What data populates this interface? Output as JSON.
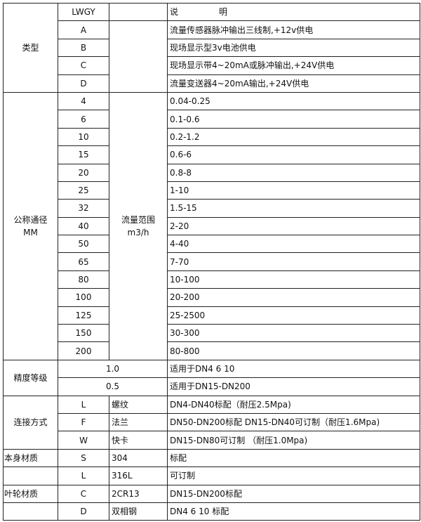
{
  "header": {
    "code": "LWGY",
    "desc_a": "说",
    "desc_b": "明"
  },
  "type": {
    "label": "类型",
    "rows": [
      {
        "code": "A",
        "desc": "流量传感器脉冲输出三线制,+12v供电"
      },
      {
        "code": "B",
        "desc": "现场显示型3v电池供电"
      },
      {
        "code": "C",
        "desc": "现场显示带4~20mA或脉冲输出,+24V供电"
      },
      {
        "code": "D",
        "desc": "流量变送器4~20mA输出,+24V供电"
      }
    ]
  },
  "diameter": {
    "label": "公称通径",
    "unit": "MM",
    "flow_label": "流量范围",
    "flow_unit": "m3/h",
    "rows": [
      {
        "dn": "4",
        "range": "0.04-0.25"
      },
      {
        "dn": "6",
        "range": "0.1-0.6"
      },
      {
        "dn": "10",
        "range": "0.2-1.2"
      },
      {
        "dn": "15",
        "range": "0.6-6"
      },
      {
        "dn": "20",
        "range": "0.8-8"
      },
      {
        "dn": "25",
        "range": "1-10"
      },
      {
        "dn": "32",
        "range": "1.5-15"
      },
      {
        "dn": "40",
        "range": "2-20"
      },
      {
        "dn": "50",
        "range": "4-40"
      },
      {
        "dn": "65",
        "range": "7-70"
      },
      {
        "dn": "80",
        "range": "10-100"
      },
      {
        "dn": "100",
        "range": "20-200"
      },
      {
        "dn": "125",
        "range": "25-2500"
      },
      {
        "dn": "150",
        "range": "30-300"
      },
      {
        "dn": "200",
        "range": "80-800"
      }
    ]
  },
  "accuracy": {
    "label": "精度等级",
    "rows": [
      {
        "grade": "1.0",
        "desc": "适用于DN4  6  10"
      },
      {
        "grade": "0.5",
        "desc": "适用于DN15-DN200"
      }
    ]
  },
  "connection": {
    "label": "连接方式",
    "rows": [
      {
        "code": "L",
        "name": "螺纹",
        "desc": "DN4-DN40标配（耐压2.5Mpa)"
      },
      {
        "code": "F",
        "name": "法兰",
        "desc": "DN50-DN200标配 DN15-DN40可订制（耐压1.6Mpa)"
      },
      {
        "code": "W",
        "name": "快卡",
        "desc": "DN15-DN80可订制 （耐压1.0Mpa)"
      }
    ]
  },
  "body_material": {
    "label": "本身材质",
    "rows": [
      {
        "code": "S",
        "name": "304",
        "desc": "标配"
      },
      {
        "code": "L",
        "name": "316L",
        "desc": "可订制"
      }
    ]
  },
  "impeller_material": {
    "label": "叶轮材质",
    "rows": [
      {
        "code": "C",
        "name": "2CR13",
        "desc": "DN15-DN200标配"
      },
      {
        "code": "D",
        "name": "双相钢",
        "desc": "DN4 6 10 标配"
      }
    ]
  }
}
